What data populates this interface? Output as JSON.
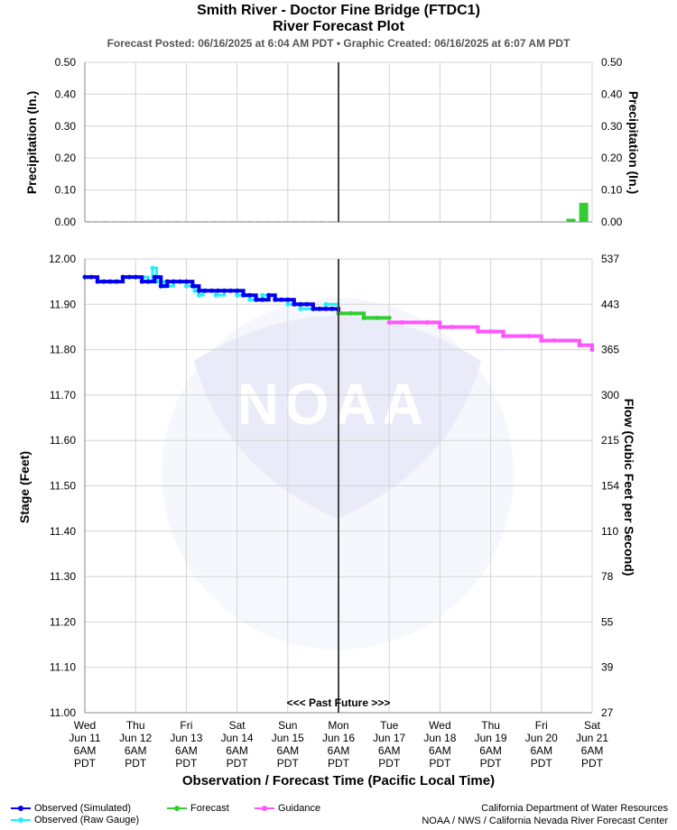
{
  "header": {
    "title": "Smith River - Doctor Fine Bridge (FTDC1)",
    "subtitle": "River Forecast Plot",
    "posted": "Forecast Posted: 06/16/2025 at 6:04 AM PDT  •  Graphic Created: 06/16/2025 at 6:07 AM PDT"
  },
  "footer": {
    "credit_line1": "California Department of Water Resources",
    "credit_line2": "NOAA / NWS / California Nevada River Forecast Center"
  },
  "watermark": {
    "label": "NOAA"
  },
  "past_future_label": "<<< Past    Future >>>",
  "legend": [
    {
      "label": "Observed (Simulated)",
      "color": "#0000ee"
    },
    {
      "label": "Observed (Raw Gauge)",
      "color": "#22eeff"
    },
    {
      "label": "Forecast",
      "color": "#33cc33"
    },
    {
      "label": "Guidance",
      "color": "#ff55ff"
    }
  ],
  "chart_data": [
    {
      "type": "bar",
      "panel": "precipitation",
      "ylabel": "Precipitation (In.)",
      "ylabel_right": "Precipitation (In.)",
      "ylim": [
        0,
        0.5
      ],
      "yticks": [
        "0.00",
        "0.10",
        "0.20",
        "0.30",
        "0.40",
        "0.50"
      ],
      "grid": true,
      "series": [
        {
          "name": "Forecast",
          "color": "#33cc33",
          "x": [
            "2025-06-20 20:00",
            "2025-06-21 02:00"
          ],
          "values": [
            0.01,
            0.06
          ]
        }
      ]
    },
    {
      "type": "line",
      "panel": "stage",
      "ylabel": "Stage (Feet)",
      "ylabel_right": "Flow (Cubic Feet per Second)",
      "xlabel": "Observation / Forecast Time (Pacific Local Time)",
      "ylim": [
        11.0,
        12.0
      ],
      "yticks": [
        "11.00",
        "11.10",
        "11.20",
        "11.30",
        "11.40",
        "11.50",
        "11.60",
        "11.70",
        "11.80",
        "11.90",
        "12.00"
      ],
      "right_ticks": [
        "27",
        "39",
        "55",
        "78",
        "110",
        "154",
        "215",
        "300",
        "365",
        "443",
        "537"
      ],
      "x_ticks": [
        [
          "Wed",
          "Jun 11",
          "6AM",
          "PDT"
        ],
        [
          "Thu",
          "Jun 12",
          "6AM",
          "PDT"
        ],
        [
          "Fri",
          "Jun 13",
          "6AM",
          "PDT"
        ],
        [
          "Sat",
          "Jun 14",
          "6AM",
          "PDT"
        ],
        [
          "Sun",
          "Jun 15",
          "6AM",
          "PDT"
        ],
        [
          "Mon",
          "Jun 16",
          "6AM",
          "PDT"
        ],
        [
          "Tue",
          "Jun 17",
          "6AM",
          "PDT"
        ],
        [
          "Wed",
          "Jun 18",
          "6AM",
          "PDT"
        ],
        [
          "Thu",
          "Jun 19",
          "6AM",
          "PDT"
        ],
        [
          "Fri",
          "Jun 20",
          "6AM",
          "PDT"
        ],
        [
          "Sat",
          "Jun 21",
          "6AM",
          "PDT"
        ]
      ],
      "now": "2025-06-16 06:00",
      "grid": true,
      "series": [
        {
          "name": "Observed (Raw Gauge)",
          "color": "#22eeff",
          "x": [
            "2025-06-11 06:00",
            "2025-06-11 12:00",
            "2025-06-11 18:00",
            "2025-06-12 00:00",
            "2025-06-12 06:00",
            "2025-06-12 12:00",
            "2025-06-12 14:00",
            "2025-06-12 16:00",
            "2025-06-12 20:00",
            "2025-06-13 00:00",
            "2025-06-13 06:00",
            "2025-06-13 10:00",
            "2025-06-13 12:00",
            "2025-06-13 14:00",
            "2025-06-13 20:00",
            "2025-06-14 00:00",
            "2025-06-14 06:00",
            "2025-06-14 10:00",
            "2025-06-14 12:00",
            "2025-06-14 18:00",
            "2025-06-15 00:00",
            "2025-06-15 06:00",
            "2025-06-15 12:00",
            "2025-06-15 18:00",
            "2025-06-16 00:00",
            "2025-06-16 06:00"
          ],
          "values": [
            11.96,
            11.95,
            11.95,
            11.96,
            11.96,
            11.95,
            11.98,
            11.95,
            11.94,
            11.95,
            11.94,
            11.93,
            11.92,
            11.93,
            11.92,
            11.93,
            11.92,
            11.92,
            11.91,
            11.92,
            11.91,
            11.9,
            11.89,
            11.89,
            11.9,
            11.88
          ]
        },
        {
          "name": "Observed (Simulated)",
          "color": "#0000ee",
          "x": [
            "2025-06-11 06:00",
            "2025-06-11 09:00",
            "2025-06-11 12:00",
            "2025-06-11 15:00",
            "2025-06-11 18:00",
            "2025-06-11 21:00",
            "2025-06-12 00:00",
            "2025-06-12 03:00",
            "2025-06-12 06:00",
            "2025-06-12 09:00",
            "2025-06-12 12:00",
            "2025-06-12 15:00",
            "2025-06-12 18:00",
            "2025-06-12 21:00",
            "2025-06-13 00:00",
            "2025-06-13 03:00",
            "2025-06-13 06:00",
            "2025-06-13 09:00",
            "2025-06-13 12:00",
            "2025-06-13 15:00",
            "2025-06-13 18:00",
            "2025-06-13 21:00",
            "2025-06-14 00:00",
            "2025-06-14 03:00",
            "2025-06-14 06:00",
            "2025-06-14 09:00",
            "2025-06-14 12:00",
            "2025-06-14 15:00",
            "2025-06-14 18:00",
            "2025-06-14 21:00",
            "2025-06-15 00:00",
            "2025-06-15 03:00",
            "2025-06-15 06:00",
            "2025-06-15 09:00",
            "2025-06-15 12:00",
            "2025-06-15 15:00",
            "2025-06-15 18:00",
            "2025-06-15 21:00",
            "2025-06-16 00:00",
            "2025-06-16 03:00",
            "2025-06-16 06:00"
          ],
          "values": [
            11.96,
            11.96,
            11.95,
            11.95,
            11.95,
            11.95,
            11.96,
            11.96,
            11.96,
            11.95,
            11.95,
            11.96,
            11.94,
            11.95,
            11.95,
            11.95,
            11.95,
            11.94,
            11.93,
            11.93,
            11.93,
            11.93,
            11.93,
            11.93,
            11.93,
            11.92,
            11.92,
            11.91,
            11.91,
            11.92,
            11.91,
            11.91,
            11.91,
            11.9,
            11.9,
            11.9,
            11.89,
            11.89,
            11.89,
            11.89,
            11.88
          ]
        },
        {
          "name": "Forecast",
          "color": "#33cc33",
          "x": [
            "2025-06-16 06:00",
            "2025-06-16 12:00",
            "2025-06-16 18:00",
            "2025-06-17 00:00",
            "2025-06-17 06:00"
          ],
          "values": [
            11.88,
            11.88,
            11.87,
            11.87,
            11.87
          ]
        },
        {
          "name": "Guidance",
          "color": "#ff55ff",
          "x": [
            "2025-06-17 06:00",
            "2025-06-17 12:00",
            "2025-06-18 00:00",
            "2025-06-18 06:00",
            "2025-06-18 12:00",
            "2025-06-19 00:00",
            "2025-06-19 06:00",
            "2025-06-19 12:00",
            "2025-06-20 00:00",
            "2025-06-20 06:00",
            "2025-06-20 12:00",
            "2025-06-21 00:00",
            "2025-06-21 06:00"
          ],
          "values": [
            11.86,
            11.86,
            11.86,
            11.85,
            11.85,
            11.84,
            11.84,
            11.83,
            11.83,
            11.82,
            11.82,
            11.81,
            11.8
          ]
        }
      ]
    }
  ]
}
